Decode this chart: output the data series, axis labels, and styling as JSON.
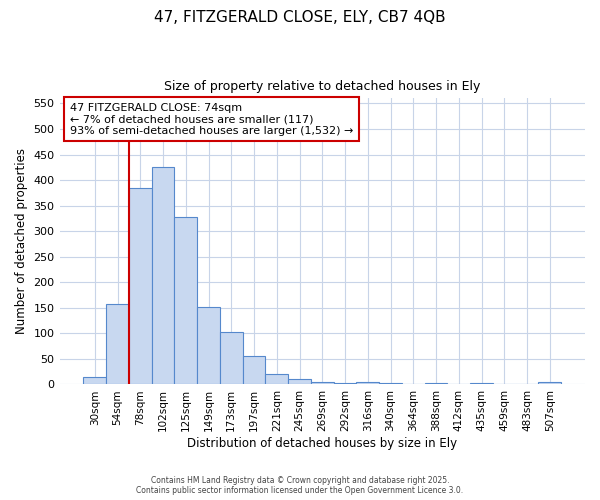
{
  "title_line1": "47, FITZGERALD CLOSE, ELY, CB7 4QB",
  "title_line2": "Size of property relative to detached houses in Ely",
  "xlabel": "Distribution of detached houses by size in Ely",
  "ylabel": "Number of detached properties",
  "bin_labels": [
    "30sqm",
    "54sqm",
    "78sqm",
    "102sqm",
    "125sqm",
    "149sqm",
    "173sqm",
    "197sqm",
    "221sqm",
    "245sqm",
    "269sqm",
    "292sqm",
    "316sqm",
    "340sqm",
    "364sqm",
    "388sqm",
    "412sqm",
    "435sqm",
    "459sqm",
    "483sqm",
    "507sqm"
  ],
  "bar_heights": [
    15,
    158,
    385,
    425,
    328,
    152,
    102,
    55,
    20,
    10,
    5,
    3,
    5,
    2,
    1,
    3,
    1,
    2,
    1,
    1,
    4
  ],
  "bar_color": "#c8d8f0",
  "bar_edge_color": "#5588cc",
  "red_line_bin_index": 2,
  "ylim": [
    0,
    560
  ],
  "yticks": [
    0,
    50,
    100,
    150,
    200,
    250,
    300,
    350,
    400,
    450,
    500,
    550
  ],
  "annotation_title": "47 FITZGERALD CLOSE: 74sqm",
  "annotation_line2": "← 7% of detached houses are smaller (117)",
  "annotation_line3": "93% of semi-detached houses are larger (1,532) →",
  "annotation_box_facecolor": "#ffffff",
  "annotation_box_edgecolor": "#cc0000",
  "footer_line1": "Contains HM Land Registry data © Crown copyright and database right 2025.",
  "footer_line2": "Contains public sector information licensed under the Open Government Licence 3.0.",
  "background_color": "#ffffff",
  "plot_bg_color": "#ffffff",
  "grid_color": "#c8d4e8",
  "fig_width": 6.0,
  "fig_height": 5.0
}
